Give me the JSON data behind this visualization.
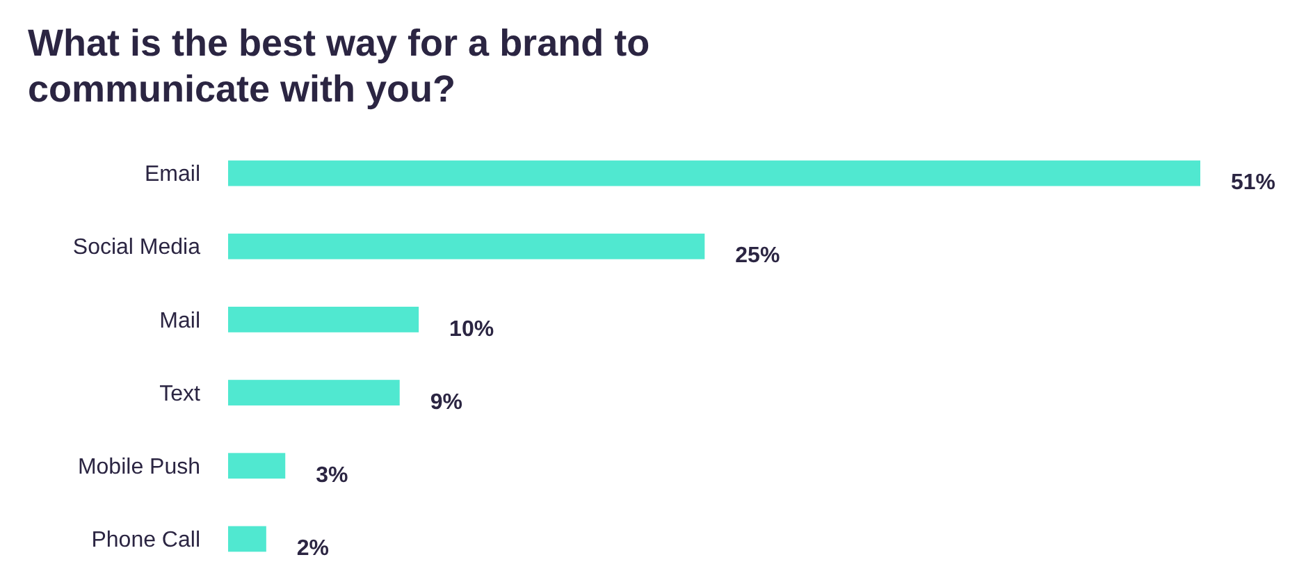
{
  "chart_data": {
    "type": "bar",
    "orientation": "horizontal",
    "title": "What is the best way for a brand to communicate with you?",
    "categories": [
      "Email",
      "Social Media",
      "Mail",
      "Text",
      "Mobile Push",
      "Phone Call"
    ],
    "values": [
      51,
      25,
      10,
      9,
      3,
      2
    ],
    "value_labels": [
      "51%",
      "25%",
      "10%",
      "9%",
      "3%",
      "2%"
    ],
    "color": "#50e8d0"
  }
}
